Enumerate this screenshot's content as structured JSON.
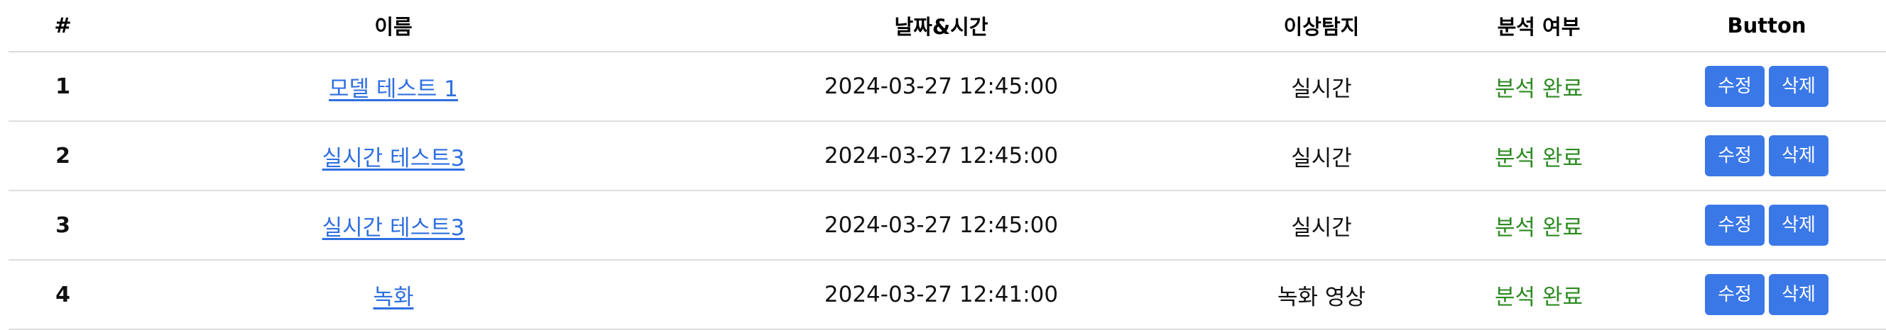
{
  "table": {
    "headers": [
      "#",
      "이름",
      "날짜&시간",
      "이상탐지",
      "분석 여부",
      "Button"
    ],
    "rows": [
      {
        "num": "1",
        "name": "모델 테스트 1",
        "datetime": "2024-03-27 12:45:00",
        "detection": "실시간",
        "status": "분석 완료",
        "edit": "수정",
        "delete": "삭제"
      },
      {
        "num": "2",
        "name": "실시간 테스트3",
        "datetime": "2024-03-27 12:45:00",
        "detection": "실시간",
        "status": "분석 완료",
        "edit": "수정",
        "delete": "삭제"
      },
      {
        "num": "3",
        "name": "실시간 테스트3",
        "datetime": "2024-03-27 12:45:00",
        "detection": "실시간",
        "status": "분석 완료",
        "edit": "수정",
        "delete": "삭제"
      },
      {
        "num": "4",
        "name": "녹화",
        "datetime": "2024-03-27 12:41:00",
        "detection": "녹화 영상",
        "status": "분석 완료",
        "edit": "수정",
        "delete": "삭제"
      }
    ]
  },
  "colors": {
    "link": "#2f6fe0",
    "status_complete": "#2e8b22",
    "button_bg": "#3b78e7",
    "button_text": "#ffffff",
    "row_border": "#dedede"
  }
}
